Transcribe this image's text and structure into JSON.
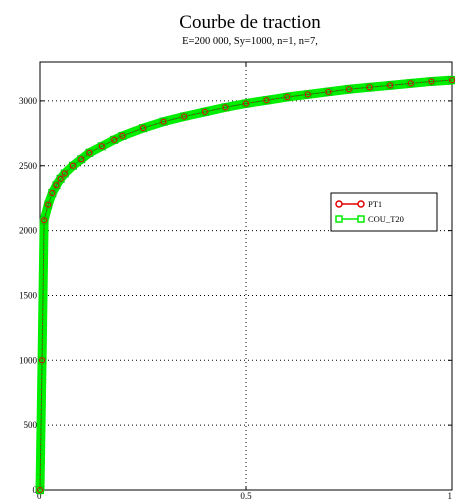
{
  "chart_data": {
    "type": "line",
    "title": "Courbe de traction",
    "subtitle": "E=200 000, Sy=1000, n=1, n=7,",
    "xlabel": "",
    "ylabel": "",
    "xlim": [
      0,
      1
    ],
    "ylim": [
      0,
      3300
    ],
    "x_ticks": [
      "0",
      "0.5",
      "1"
    ],
    "y_ticks": [
      "0",
      "500",
      "1000",
      "1500",
      "2000",
      "2500",
      "3000"
    ],
    "grid": true,
    "legend_position": "right",
    "series": [
      {
        "name": "PT1",
        "color": "#e00000",
        "marker": "circle",
        "x": [
          0,
          0.005,
          0.01,
          0.02,
          0.03,
          0.04,
          0.05,
          0.06,
          0.08,
          0.1,
          0.12,
          0.15,
          0.18,
          0.2,
          0.25,
          0.3,
          0.35,
          0.4,
          0.45,
          0.5,
          0.55,
          0.6,
          0.65,
          0.7,
          0.75,
          0.8,
          0.85,
          0.9,
          0.95,
          1.0
        ],
        "y": [
          0,
          1000,
          2080,
          2200,
          2290,
          2350,
          2400,
          2440,
          2500,
          2550,
          2600,
          2650,
          2700,
          2730,
          2790,
          2840,
          2880,
          2915,
          2950,
          2980,
          3005,
          3030,
          3050,
          3070,
          3090,
          3105,
          3120,
          3135,
          3150,
          3160
        ]
      },
      {
        "name": "COU_T20",
        "color": "#00ee00",
        "marker": "square",
        "x": [
          0,
          0.005,
          0.01,
          0.02,
          0.03,
          0.04,
          0.05,
          0.06,
          0.08,
          0.1,
          0.12,
          0.15,
          0.18,
          0.2,
          0.25,
          0.3,
          0.35,
          0.4,
          0.45,
          0.5,
          0.55,
          0.6,
          0.65,
          0.7,
          0.75,
          0.8,
          0.85,
          0.9,
          0.95,
          1.0
        ],
        "y": [
          0,
          1000,
          2080,
          2200,
          2290,
          2350,
          2400,
          2440,
          2500,
          2550,
          2600,
          2650,
          2700,
          2730,
          2790,
          2840,
          2880,
          2915,
          2950,
          2980,
          3005,
          3030,
          3050,
          3070,
          3090,
          3105,
          3120,
          3135,
          3150,
          3160
        ]
      }
    ]
  }
}
